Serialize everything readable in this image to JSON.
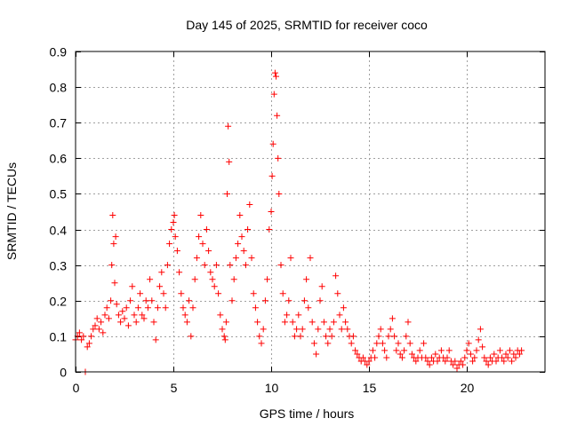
{
  "chart_data": {
    "type": "scatter",
    "title": "Day 145 of 2025, SRMTID for receiver coco",
    "xlabel": "GPS time / hours",
    "ylabel": "SRMTID / TECUs",
    "xlim": [
      0,
      24
    ],
    "ylim": [
      0,
      0.9
    ],
    "xticks": [
      0,
      5,
      10,
      15,
      20
    ],
    "xtick_labels": [
      "0",
      "5",
      "10",
      "15",
      "20"
    ],
    "yticks": [
      0,
      0.1,
      0.2,
      0.3,
      0.4,
      0.5,
      0.6,
      0.7,
      0.8,
      0.9
    ],
    "ytick_labels": [
      "0",
      "0.1",
      "0.2",
      "0.3",
      "0.4",
      "0.5",
      "0.6",
      "0.7",
      "0.8",
      "0.9"
    ],
    "grid": true,
    "marker": "+",
    "marker_color": "#ff0000",
    "series": [
      {
        "name": "SRMTID",
        "points": [
          [
            0.0,
            0.09
          ],
          [
            0.1,
            0.1
          ],
          [
            0.2,
            0.11
          ],
          [
            0.3,
            0.09
          ],
          [
            0.4,
            0.1
          ],
          [
            0.5,
            0.0
          ],
          [
            0.6,
            0.07
          ],
          [
            0.7,
            0.08
          ],
          [
            0.8,
            0.1
          ],
          [
            0.9,
            0.12
          ],
          [
            1.0,
            0.13
          ],
          [
            1.1,
            0.15
          ],
          [
            1.2,
            0.12
          ],
          [
            1.3,
            0.14
          ],
          [
            1.4,
            0.11
          ],
          [
            1.5,
            0.16
          ],
          [
            1.6,
            0.18
          ],
          [
            1.7,
            0.15
          ],
          [
            1.8,
            0.2
          ],
          [
            1.85,
            0.3
          ],
          [
            1.9,
            0.44
          ],
          [
            1.95,
            0.36
          ],
          [
            2.0,
            0.25
          ],
          [
            2.05,
            0.38
          ],
          [
            2.1,
            0.19
          ],
          [
            2.2,
            0.16
          ],
          [
            2.3,
            0.14
          ],
          [
            2.4,
            0.17
          ],
          [
            2.5,
            0.15
          ],
          [
            2.6,
            0.18
          ],
          [
            2.7,
            0.13
          ],
          [
            2.8,
            0.2
          ],
          [
            2.9,
            0.24
          ],
          [
            3.0,
            0.16
          ],
          [
            3.1,
            0.14
          ],
          [
            3.2,
            0.18
          ],
          [
            3.3,
            0.22
          ],
          [
            3.4,
            0.16
          ],
          [
            3.5,
            0.15
          ],
          [
            3.6,
            0.2
          ],
          [
            3.7,
            0.18
          ],
          [
            3.8,
            0.26
          ],
          [
            3.9,
            0.2
          ],
          [
            4.0,
            0.14
          ],
          [
            4.1,
            0.09
          ],
          [
            4.2,
            0.18
          ],
          [
            4.3,
            0.24
          ],
          [
            4.4,
            0.28
          ],
          [
            4.5,
            0.22
          ],
          [
            4.6,
            0.18
          ],
          [
            4.7,
            0.3
          ],
          [
            4.8,
            0.36
          ],
          [
            4.9,
            0.4
          ],
          [
            5.0,
            0.42
          ],
          [
            5.05,
            0.44
          ],
          [
            5.1,
            0.38
          ],
          [
            5.2,
            0.34
          ],
          [
            5.3,
            0.28
          ],
          [
            5.4,
            0.22
          ],
          [
            5.5,
            0.18
          ],
          [
            5.6,
            0.16
          ],
          [
            5.7,
            0.14
          ],
          [
            5.8,
            0.2
          ],
          [
            5.9,
            0.1
          ],
          [
            6.0,
            0.18
          ],
          [
            6.1,
            0.26
          ],
          [
            6.2,
            0.32
          ],
          [
            6.3,
            0.38
          ],
          [
            6.4,
            0.44
          ],
          [
            6.5,
            0.36
          ],
          [
            6.6,
            0.3
          ],
          [
            6.7,
            0.4
          ],
          [
            6.8,
            0.34
          ],
          [
            6.9,
            0.28
          ],
          [
            7.0,
            0.26
          ],
          [
            7.1,
            0.24
          ],
          [
            7.2,
            0.3
          ],
          [
            7.3,
            0.22
          ],
          [
            7.4,
            0.16
          ],
          [
            7.5,
            0.12
          ],
          [
            7.6,
            0.1
          ],
          [
            7.65,
            0.09
          ],
          [
            7.7,
            0.14
          ],
          [
            7.75,
            0.5
          ],
          [
            7.8,
            0.69
          ],
          [
            7.85,
            0.59
          ],
          [
            7.9,
            0.3
          ],
          [
            8.0,
            0.2
          ],
          [
            8.1,
            0.26
          ],
          [
            8.2,
            0.32
          ],
          [
            8.3,
            0.36
          ],
          [
            8.4,
            0.44
          ],
          [
            8.5,
            0.38
          ],
          [
            8.6,
            0.34
          ],
          [
            8.7,
            0.3
          ],
          [
            8.8,
            0.4
          ],
          [
            8.9,
            0.47
          ],
          [
            9.0,
            0.32
          ],
          [
            9.1,
            0.22
          ],
          [
            9.2,
            0.18
          ],
          [
            9.3,
            0.14
          ],
          [
            9.4,
            0.1
          ],
          [
            9.5,
            0.08
          ],
          [
            9.6,
            0.12
          ],
          [
            9.7,
            0.2
          ],
          [
            9.8,
            0.26
          ],
          [
            9.9,
            0.4
          ],
          [
            10.0,
            0.45
          ],
          [
            10.05,
            0.55
          ],
          [
            10.1,
            0.64
          ],
          [
            10.15,
            0.78
          ],
          [
            10.2,
            0.84
          ],
          [
            10.25,
            0.83
          ],
          [
            10.3,
            0.72
          ],
          [
            10.35,
            0.6
          ],
          [
            10.4,
            0.5
          ],
          [
            10.5,
            0.3
          ],
          [
            10.6,
            0.22
          ],
          [
            10.7,
            0.14
          ],
          [
            10.8,
            0.16
          ],
          [
            10.9,
            0.2
          ],
          [
            11.0,
            0.32
          ],
          [
            11.1,
            0.14
          ],
          [
            11.2,
            0.1
          ],
          [
            11.3,
            0.12
          ],
          [
            11.4,
            0.16
          ],
          [
            11.5,
            0.1
          ],
          [
            11.6,
            0.12
          ],
          [
            11.7,
            0.2
          ],
          [
            11.8,
            0.26
          ],
          [
            11.9,
            0.18
          ],
          [
            12.0,
            0.32
          ],
          [
            12.1,
            0.14
          ],
          [
            12.2,
            0.08
          ],
          [
            12.3,
            0.05
          ],
          [
            12.4,
            0.12
          ],
          [
            12.5,
            0.2
          ],
          [
            12.6,
            0.24
          ],
          [
            12.7,
            0.14
          ],
          [
            12.8,
            0.1
          ],
          [
            12.9,
            0.08
          ],
          [
            13.0,
            0.12
          ],
          [
            13.1,
            0.1
          ],
          [
            13.2,
            0.14
          ],
          [
            13.3,
            0.27
          ],
          [
            13.4,
            0.22
          ],
          [
            13.5,
            0.16
          ],
          [
            13.6,
            0.12
          ],
          [
            13.7,
            0.18
          ],
          [
            13.8,
            0.14
          ],
          [
            13.9,
            0.12
          ],
          [
            14.0,
            0.1
          ],
          [
            14.1,
            0.08
          ],
          [
            14.2,
            0.1
          ],
          [
            14.3,
            0.06
          ],
          [
            14.4,
            0.05
          ],
          [
            14.5,
            0.04
          ],
          [
            14.6,
            0.03
          ],
          [
            14.7,
            0.04
          ],
          [
            14.8,
            0.03
          ],
          [
            14.9,
            0.02
          ],
          [
            15.0,
            0.03
          ],
          [
            15.1,
            0.04
          ],
          [
            15.2,
            0.06
          ],
          [
            15.3,
            0.04
          ],
          [
            15.4,
            0.08
          ],
          [
            15.5,
            0.1
          ],
          [
            15.6,
            0.12
          ],
          [
            15.7,
            0.08
          ],
          [
            15.8,
            0.06
          ],
          [
            15.9,
            0.04
          ],
          [
            16.0,
            0.1
          ],
          [
            16.1,
            0.12
          ],
          [
            16.2,
            0.15
          ],
          [
            16.3,
            0.1
          ],
          [
            16.4,
            0.06
          ],
          [
            16.5,
            0.08
          ],
          [
            16.6,
            0.05
          ],
          [
            16.7,
            0.04
          ],
          [
            16.8,
            0.06
          ],
          [
            16.9,
            0.1
          ],
          [
            17.0,
            0.14
          ],
          [
            17.1,
            0.08
          ],
          [
            17.2,
            0.05
          ],
          [
            17.3,
            0.04
          ],
          [
            17.4,
            0.03
          ],
          [
            17.5,
            0.04
          ],
          [
            17.6,
            0.06
          ],
          [
            17.7,
            0.04
          ],
          [
            17.8,
            0.08
          ],
          [
            17.9,
            0.04
          ],
          [
            18.0,
            0.03
          ],
          [
            18.1,
            0.02
          ],
          [
            18.2,
            0.04
          ],
          [
            18.3,
            0.03
          ],
          [
            18.4,
            0.05
          ],
          [
            18.5,
            0.03
          ],
          [
            18.6,
            0.04
          ],
          [
            18.7,
            0.06
          ],
          [
            18.8,
            0.04
          ],
          [
            18.9,
            0.03
          ],
          [
            19.0,
            0.04
          ],
          [
            19.1,
            0.06
          ],
          [
            19.2,
            0.03
          ],
          [
            19.3,
            0.02
          ],
          [
            19.4,
            0.03
          ],
          [
            19.5,
            0.01
          ],
          [
            19.6,
            0.02
          ],
          [
            19.7,
            0.03
          ],
          [
            19.8,
            0.02
          ],
          [
            19.9,
            0.04
          ],
          [
            20.0,
            0.06
          ],
          [
            20.1,
            0.08
          ],
          [
            20.2,
            0.05
          ],
          [
            20.3,
            0.03
          ],
          [
            20.4,
            0.04
          ],
          [
            20.5,
            0.06
          ],
          [
            20.6,
            0.09
          ],
          [
            20.7,
            0.12
          ],
          [
            20.8,
            0.07
          ],
          [
            20.9,
            0.04
          ],
          [
            21.0,
            0.03
          ],
          [
            21.1,
            0.02
          ],
          [
            21.2,
            0.04
          ],
          [
            21.3,
            0.03
          ],
          [
            21.4,
            0.05
          ],
          [
            21.5,
            0.03
          ],
          [
            21.6,
            0.04
          ],
          [
            21.7,
            0.06
          ],
          [
            21.8,
            0.04
          ],
          [
            21.9,
            0.03
          ],
          [
            22.0,
            0.05
          ],
          [
            22.1,
            0.04
          ],
          [
            22.2,
            0.06
          ],
          [
            22.3,
            0.03
          ],
          [
            22.4,
            0.05
          ],
          [
            22.5,
            0.04
          ],
          [
            22.6,
            0.06
          ],
          [
            22.7,
            0.05
          ],
          [
            22.8,
            0.06
          ]
        ]
      }
    ]
  }
}
